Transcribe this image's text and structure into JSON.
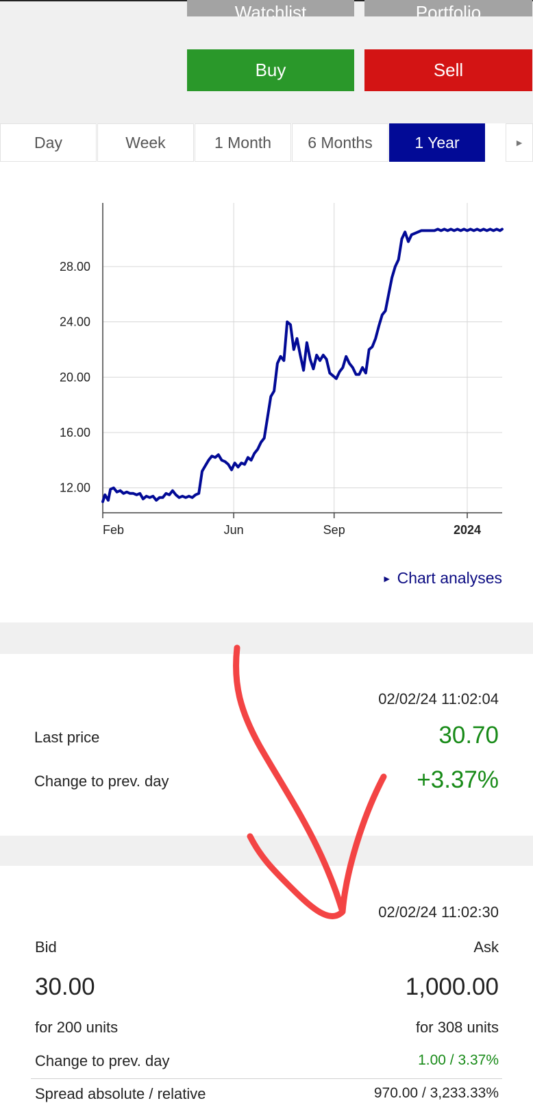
{
  "actions": {
    "watchlist_label": "Watchlist",
    "portfolio_label": "Portfolio",
    "buy_label": "Buy",
    "sell_label": "Sell"
  },
  "tabs": [
    {
      "label": "Day"
    },
    {
      "label": "Week"
    },
    {
      "label": "1 Month"
    },
    {
      "label": "6 Months"
    },
    {
      "label": "1 Year",
      "active": true
    },
    {
      "label": "►"
    }
  ],
  "chart_data": {
    "type": "line",
    "x_ticks": [
      "Feb",
      "Jun",
      "Sep",
      "2024"
    ],
    "y_ticks": [
      "12.00",
      "16.00",
      "20.00",
      "24.00",
      "28.00"
    ],
    "ylim": [
      10.2,
      32.6
    ],
    "grid": true,
    "color": "#020a96",
    "series": [
      {
        "x": [
          "2023-02-01",
          "2023-02-03",
          "2023-02-06",
          "2023-02-08",
          "2023-02-11",
          "2023-02-14",
          "2023-02-17",
          "2023-02-20",
          "2023-02-23",
          "2023-02-26",
          "2023-03-01",
          "2023-03-04",
          "2023-03-07",
          "2023-03-10",
          "2023-03-13",
          "2023-03-16",
          "2023-03-19",
          "2023-03-22",
          "2023-03-25",
          "2023-03-28",
          "2023-03-31",
          "2023-04-03",
          "2023-04-06",
          "2023-04-09",
          "2023-04-12",
          "2023-04-15",
          "2023-04-18",
          "2023-04-21",
          "2023-04-24",
          "2023-04-27",
          "2023-04-30",
          "2023-05-03",
          "2023-05-06",
          "2023-05-09",
          "2023-05-12",
          "2023-05-15",
          "2023-05-18",
          "2023-05-21",
          "2023-05-24",
          "2023-05-27",
          "2023-05-30",
          "2023-06-02",
          "2023-06-05",
          "2023-06-08",
          "2023-06-11",
          "2023-06-14",
          "2023-06-17",
          "2023-06-20",
          "2023-06-23",
          "2023-06-26",
          "2023-06-29",
          "2023-07-02",
          "2023-07-05",
          "2023-07-08",
          "2023-07-11",
          "2023-07-14",
          "2023-07-17",
          "2023-07-20",
          "2023-07-23",
          "2023-07-26",
          "2023-07-29",
          "2023-08-01",
          "2023-08-04",
          "2023-08-07",
          "2023-08-10",
          "2023-08-13",
          "2023-08-16",
          "2023-08-19",
          "2023-08-22",
          "2023-08-25",
          "2023-08-28",
          "2023-08-31",
          "2023-09-03",
          "2023-09-06",
          "2023-09-09",
          "2023-09-12",
          "2023-09-15",
          "2023-09-18",
          "2023-09-21",
          "2023-09-24",
          "2023-09-27",
          "2023-09-30",
          "2023-10-03",
          "2023-10-06",
          "2023-10-09",
          "2023-10-12",
          "2023-10-15",
          "2023-10-18",
          "2023-10-21",
          "2023-10-24",
          "2023-10-27",
          "2023-10-30",
          "2023-11-02",
          "2023-11-05",
          "2023-11-08",
          "2023-11-11",
          "2023-11-14",
          "2023-11-17",
          "2023-11-20",
          "2023-11-23",
          "2023-11-26",
          "2023-11-29",
          "2023-12-02",
          "2023-12-05",
          "2023-12-08",
          "2023-12-11",
          "2023-12-14",
          "2023-12-17",
          "2023-12-20",
          "2023-12-23",
          "2023-12-26",
          "2023-12-29",
          "2024-01-01",
          "2024-01-04",
          "2024-01-07",
          "2024-01-10",
          "2024-01-13",
          "2024-01-16",
          "2024-01-19",
          "2024-01-22",
          "2024-01-25",
          "2024-01-28",
          "2024-01-31",
          "2024-02-02"
        ],
        "y": [
          11.0,
          11.5,
          11.1,
          11.9,
          12.0,
          11.7,
          11.8,
          11.6,
          11.7,
          11.6,
          11.6,
          11.5,
          11.6,
          11.2,
          11.4,
          11.3,
          11.4,
          11.1,
          11.3,
          11.3,
          11.6,
          11.5,
          11.8,
          11.5,
          11.3,
          11.4,
          11.3,
          11.4,
          11.3,
          11.5,
          11.6,
          13.2,
          13.6,
          14.0,
          14.3,
          14.2,
          14.4,
          14.0,
          13.9,
          13.7,
          13.3,
          13.8,
          13.5,
          13.8,
          13.7,
          14.2,
          14.0,
          14.5,
          14.8,
          15.3,
          15.6,
          17.1,
          18.6,
          19.0,
          21.0,
          21.5,
          21.2,
          24.0,
          23.8,
          22.0,
          22.8,
          21.6,
          20.5,
          22.5,
          21.3,
          20.6,
          21.6,
          21.2,
          21.6,
          21.3,
          20.3,
          20.1,
          19.9,
          20.4,
          20.7,
          21.5,
          21.0,
          20.7,
          20.2,
          20.2,
          20.7,
          20.3,
          22.0,
          22.2,
          22.8,
          23.7,
          24.5,
          24.8,
          26.0,
          27.2,
          28.0,
          28.5,
          30.0,
          30.5,
          29.8,
          30.3,
          30.4,
          30.5,
          30.6,
          30.6,
          30.6,
          30.6,
          30.6,
          30.7,
          30.6,
          30.7,
          30.6,
          30.7,
          30.6,
          30.7,
          30.6,
          30.7,
          30.6,
          30.7,
          30.6,
          30.7,
          30.6,
          30.7,
          30.6,
          30.7,
          30.6,
          30.7,
          30.6,
          30.7
        ]
      }
    ]
  },
  "chart_link": {
    "label": "Chart analyses"
  },
  "quote": {
    "timestamp": "02/02/24 11:02:04",
    "last_price_label": "Last price",
    "last_price": "30.70",
    "change_label": "Change to prev. day",
    "change": "+3.37%"
  },
  "orderbook": {
    "timestamp": "02/02/24 11:02:30",
    "bid_label": "Bid",
    "ask_label": "Ask",
    "bid": "30.00",
    "ask": "1,000.00",
    "bid_units": "for 200 units",
    "ask_units": "for 308 units",
    "change_label": "Change to prev. day",
    "change": "1.00 / 3.37%",
    "spread_label": "Spread absolute / relative",
    "spread": "970.00 / 3,233.33%"
  },
  "colors": {
    "buy": "#2a982a",
    "sell": "#d31414",
    "active_tab": "#020a96",
    "positive": "#178a17",
    "annotation": "#f23a3a"
  }
}
